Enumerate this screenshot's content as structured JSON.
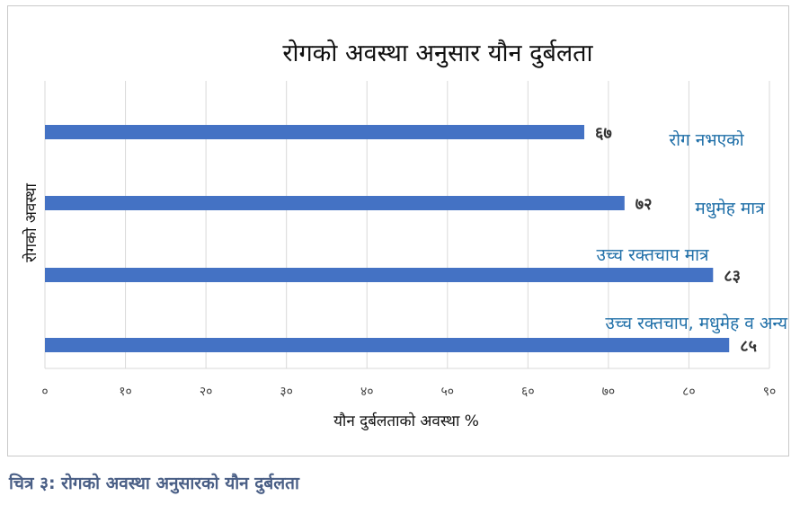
{
  "chart_data": {
    "type": "bar",
    "orientation": "horizontal",
    "title": "रोगको अवस्था अनुसार यौन दुर्बलता",
    "xlabel": "यौन दुर्बलताको अवस्था %",
    "ylabel": "रोगको अवस्था",
    "xlim": [
      0,
      90
    ],
    "xticks": [
      "०",
      "१०",
      "२०",
      "३०",
      "४०",
      "५०",
      "६०",
      "७०",
      "८०",
      "९०"
    ],
    "xtick_values": [
      0,
      10,
      20,
      30,
      40,
      50,
      60,
      70,
      80,
      90
    ],
    "grid": true,
    "bar_color": "#4472c4",
    "category_label_color": "#1f6fa8",
    "categories": [
      "रोग नभएको",
      "मधुमेह मात्र",
      "उच्च रक्तचाप मात्र",
      "उच्च रक्तचाप, मधुमेह व अन्य"
    ],
    "values": [
      67,
      72,
      83,
      85
    ],
    "value_labels": [
      "६७",
      "७२",
      "८३",
      "८५"
    ]
  },
  "caption": "चित्र ३: रोगको अवस्था अनुसारको यौन दुर्बलता"
}
